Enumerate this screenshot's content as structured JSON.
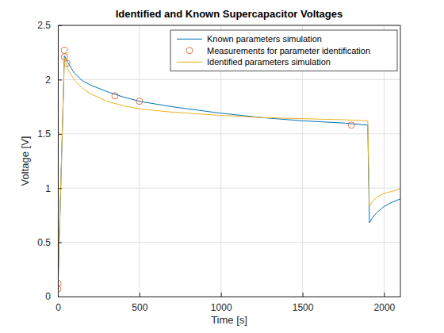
{
  "chart_data": {
    "type": "line",
    "title": "Identified and Known Supercapacitor Voltages",
    "x_label": "Time [s]",
    "y_label": "Voltage [V]",
    "xlim": [
      0,
      2100
    ],
    "ylim": [
      0,
      2.5
    ],
    "xticks": [
      0,
      500,
      1000,
      1500,
      2000
    ],
    "yticks": [
      0,
      0.5,
      1,
      1.5,
      2,
      2.5
    ],
    "grid": true,
    "legend": "northeast",
    "series": [
      {
        "name": "Known parameters simulation",
        "type": "line",
        "line_style": "solid",
        "color": "#0072bd",
        "x": [
          0,
          40,
          60,
          100,
          150,
          200,
          300,
          400,
          500,
          700,
          1000,
          1250,
          1500,
          1750,
          1900,
          1910,
          1930,
          1960,
          2000,
          2050,
          2100
        ],
        "values": [
          0.05,
          2.22,
          2.16,
          2.06,
          1.99,
          1.95,
          1.89,
          1.84,
          1.8,
          1.75,
          1.69,
          1.65,
          1.62,
          1.6,
          1.58,
          0.68,
          0.73,
          0.78,
          0.83,
          0.87,
          0.9
        ]
      },
      {
        "name": "Measurements for parameter identification",
        "type": "scatter",
        "marker": "circle",
        "color": "#d95319",
        "x": [
          0,
          0,
          40,
          40,
          55,
          350,
          500,
          1800
        ],
        "values": [
          0.07,
          0.12,
          2.27,
          2.21,
          2.15,
          1.85,
          1.8,
          1.58
        ]
      },
      {
        "name": "Identified parameters simulation",
        "type": "line",
        "line_style": "solid",
        "color": "#edb120",
        "x": [
          0,
          40,
          60,
          100,
          150,
          200,
          300,
          400,
          500,
          700,
          1000,
          1250,
          1500,
          1750,
          1900,
          1910,
          1930,
          1960,
          2000,
          2050,
          2100
        ],
        "values": [
          0.1,
          2.2,
          2.1,
          2.0,
          1.92,
          1.87,
          1.8,
          1.76,
          1.73,
          1.7,
          1.67,
          1.65,
          1.64,
          1.63,
          1.62,
          0.83,
          0.88,
          0.92,
          0.95,
          0.97,
          0.99
        ]
      }
    ]
  }
}
